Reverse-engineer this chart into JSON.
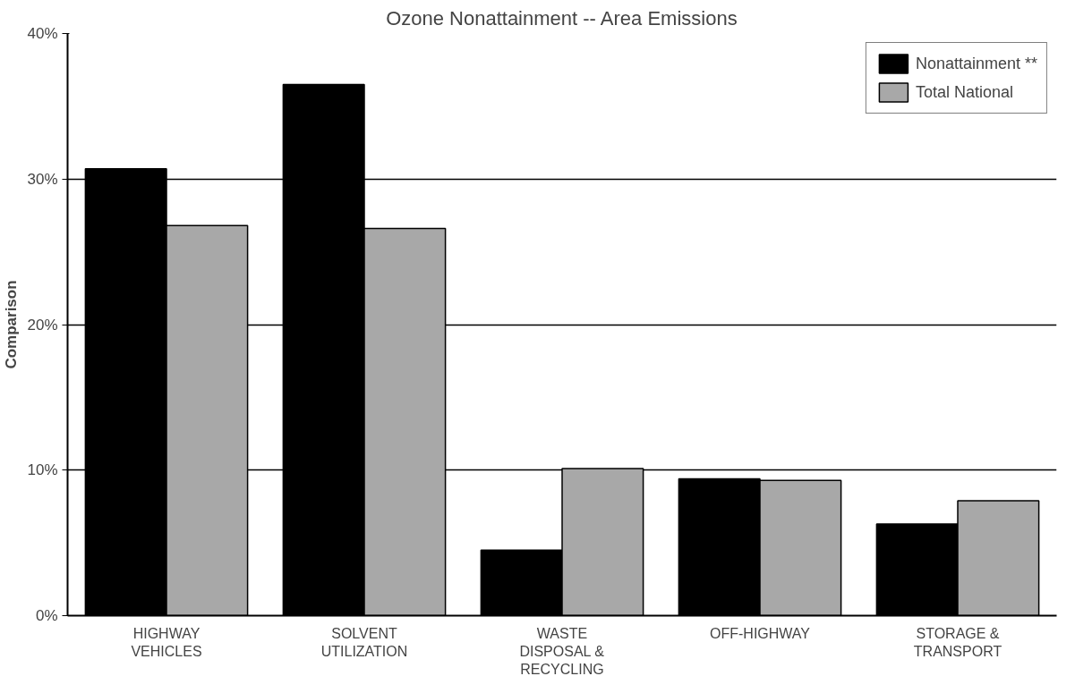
{
  "chart_data": {
    "type": "bar",
    "title": "Ozone Nonattainment -- Area Emissions",
    "ylabel": "Comparison",
    "categories": [
      "HIGHWAY\nVEHICLES",
      "SOLVENT\nUTILIZATION",
      "WASTE\nDISPOSAL &\nRECYCLING",
      "OFF-HIGHWAY",
      "STORAGE &\nTRANSPORT"
    ],
    "series": [
      {
        "name": "Nonattainment **",
        "color": "#000000",
        "values": [
          30.7,
          36.5,
          4.5,
          9.4,
          6.3
        ]
      },
      {
        "name": "Total National",
        "color": "#a8a8a8",
        "values": [
          26.8,
          26.6,
          10.1,
          9.3,
          7.9
        ]
      }
    ],
    "ylim": [
      0,
      40
    ],
    "yticks": [
      {
        "value": 0,
        "label": "0%"
      },
      {
        "value": 10,
        "label": "10%"
      },
      {
        "value": 20,
        "label": "20%"
      },
      {
        "value": 30,
        "label": "30%"
      },
      {
        "value": 40,
        "label": "40%"
      }
    ],
    "grid": "y",
    "legend": "top right"
  }
}
